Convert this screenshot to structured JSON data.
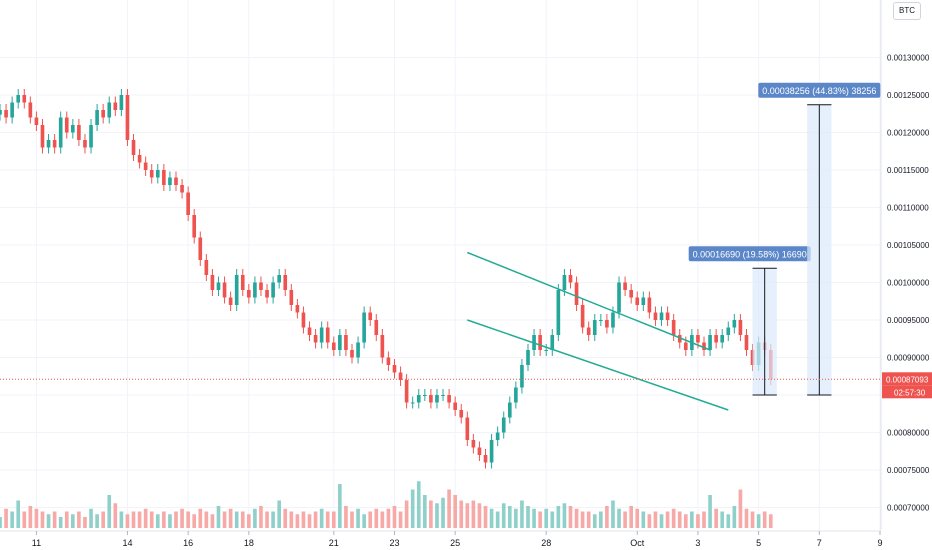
{
  "currency_badge": "BTC",
  "chart_data": {
    "type": "candlestick",
    "y_axis": {
      "ticks": [
        0.0007,
        0.00075,
        0.0008,
        0.00085,
        0.0009,
        0.00095,
        0.001,
        0.00105,
        0.0011,
        0.00115,
        0.0012,
        0.00125,
        0.0013
      ],
      "tick_labels": [
        "0.00070000",
        "0.00075000",
        "0.00080000",
        "0.00085000",
        "0.00090000",
        "0.00095000",
        "0.00100000",
        "0.00105000",
        "0.00110000",
        "0.00115000",
        "0.00120000",
        "0.00125000",
        "0.00130000"
      ],
      "range": [
        0.00067,
        0.00135
      ]
    },
    "x_axis": {
      "tick_labels": [
        "11",
        "14",
        "16",
        "18",
        "21",
        "23",
        "25",
        "28",
        "Oct",
        "3",
        "5",
        "7",
        "9"
      ],
      "range_index": [
        0,
        145
      ],
      "tick_index": [
        6,
        21,
        31,
        41,
        55,
        65,
        75,
        90,
        105,
        115,
        125,
        135,
        145
      ]
    },
    "price_series": [
      0.00123,
      0.00122,
      0.00124,
      0.00125,
      0.00124,
      0.00122,
      0.00121,
      0.00118,
      0.00119,
      0.00118,
      0.00122,
      0.0012,
      0.00121,
      0.00119,
      0.00118,
      0.00121,
      0.00123,
      0.00122,
      0.00124,
      0.00123,
      0.00125,
      0.00119,
      0.00117,
      0.00116,
      0.00115,
      0.00114,
      0.00115,
      0.00113,
      0.00114,
      0.00113,
      0.00112,
      0.00109,
      0.00106,
      0.00103,
      0.00101,
      0.00099,
      0.001,
      0.00098,
      0.00097,
      0.00101,
      0.00099,
      0.00098,
      0.001,
      0.00099,
      0.00098,
      0.001,
      0.00101,
      0.00099,
      0.00097,
      0.00096,
      0.00094,
      0.00093,
      0.00092,
      0.00094,
      0.00092,
      0.00091,
      0.00093,
      0.00091,
      0.0009,
      0.00092,
      0.00096,
      0.00095,
      0.00093,
      0.0009,
      0.00089,
      0.00088,
      0.00087,
      0.00084,
      0.00084,
      0.00085,
      0.00085,
      0.00084,
      0.00085,
      0.00085,
      0.00084,
      0.00083,
      0.00082,
      0.00079,
      0.00078,
      0.00077,
      0.00076,
      0.00079,
      0.0008,
      0.00082,
      0.00084,
      0.00086,
      0.00089,
      0.00091,
      0.00093,
      0.00091,
      0.00091,
      0.00093,
      0.00099,
      0.00101,
      0.001,
      0.00097,
      0.00094,
      0.00093,
      0.00095,
      0.00095,
      0.00094,
      0.00096,
      0.001,
      0.00099,
      0.00098,
      0.00097,
      0.00098,
      0.00096,
      0.00095,
      0.00096,
      0.00095,
      0.00093,
      0.00092,
      0.00091,
      0.00093,
      0.00092,
      0.00091,
      0.00093,
      0.00092,
      0.00093,
      0.00094,
      0.00095,
      0.00093,
      0.00091,
      0.00089,
      0.00092,
      0.00091,
      0.00087093
    ],
    "volume_series": [
      0.2,
      0.35,
      0.3,
      0.5,
      0.3,
      0.4,
      0.35,
      0.3,
      0.25,
      0.3,
      0.2,
      0.3,
      0.25,
      0.3,
      0.2,
      0.35,
      0.25,
      0.3,
      0.6,
      0.45,
      0.3,
      0.25,
      0.3,
      0.3,
      0.35,
      0.3,
      0.25,
      0.3,
      0.25,
      0.3,
      0.35,
      0.3,
      0.25,
      0.35,
      0.3,
      0.25,
      0.4,
      0.3,
      0.35,
      0.3,
      0.3,
      0.25,
      0.35,
      0.4,
      0.3,
      0.3,
      0.5,
      0.35,
      0.3,
      0.25,
      0.3,
      0.25,
      0.3,
      0.35,
      0.3,
      0.3,
      0.8,
      0.4,
      0.3,
      0.35,
      0.25,
      0.3,
      0.35,
      0.3,
      0.35,
      0.4,
      0.3,
      0.5,
      0.7,
      0.85,
      0.6,
      0.5,
      0.45,
      0.55,
      0.7,
      0.6,
      0.5,
      0.45,
      0.5,
      0.45,
      0.4,
      0.35,
      0.3,
      0.45,
      0.4,
      0.35,
      0.5,
      0.4,
      0.35,
      0.3,
      0.35,
      0.3,
      0.4,
      0.45,
      0.4,
      0.35,
      0.3,
      0.3,
      0.25,
      0.3,
      0.4,
      0.5,
      0.35,
      0.3,
      0.4,
      0.35,
      0.3,
      0.25,
      0.3,
      0.25,
      0.3,
      0.35,
      0.3,
      0.25,
      0.3,
      0.25,
      0.3,
      0.6,
      0.35,
      0.3,
      0.25,
      0.4,
      0.7,
      0.35,
      0.3,
      0.25,
      0.3,
      0.25
    ],
    "channel": {
      "upper": {
        "from": [
          77,
          0.00104
        ],
        "to": [
          117,
          0.00091
        ]
      },
      "lower": {
        "from": [
          77,
          0.00095
        ],
        "to": [
          120,
          0.00083
        ]
      }
    },
    "current_price": {
      "value": 0.00087093,
      "label": "0.00087093",
      "countdown": "02:57:30"
    },
    "measurements": [
      {
        "label": "0.00016690 (19.58%) 16690",
        "x_index_from": 124,
        "x_index_to": 128,
        "y_from": 0.00085,
        "y_to": 0.001019
      },
      {
        "label": "0.00038256 (44.83%) 38256",
        "x_index_from": 133,
        "x_index_to": 137,
        "y_from": 0.00085,
        "y_to": 0.001237
      }
    ],
    "colors": {
      "up": "#26a69a",
      "down": "#ef5350",
      "up_volume": "#8fd1ca",
      "down_volume": "#f7a9a7",
      "channel": "#22ab94",
      "price_line": "#ef5350",
      "measure_fill": "#dbe9fb",
      "measure_label": "#5b87c9"
    }
  }
}
